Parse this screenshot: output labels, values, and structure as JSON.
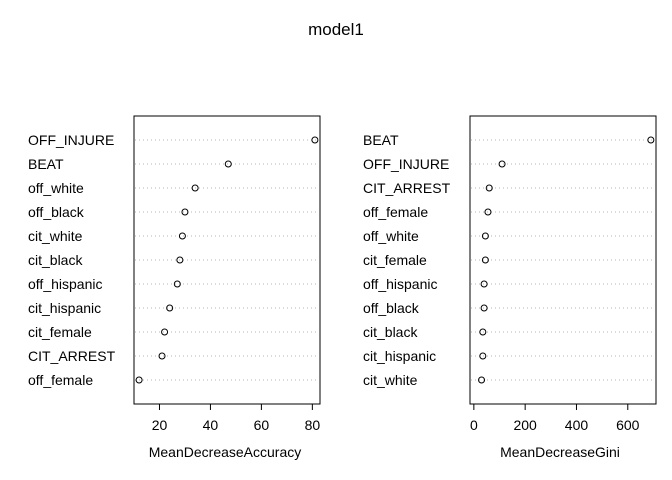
{
  "chart_data": {
    "title": "model1",
    "type": "scatter",
    "panels": [
      {
        "xlabel": "MeanDecreaseAccuracy",
        "xlim": [
          10,
          83
        ],
        "ticks": [
          20,
          40,
          60,
          80
        ],
        "grid": "dotted",
        "categories": [
          "OFF_INJURE",
          "BEAT",
          "off_white",
          "off_black",
          "cit_white",
          "cit_black",
          "off_hispanic",
          "cit_hispanic",
          "cit_female",
          "CIT_ARREST",
          "off_female"
        ],
        "values": [
          81,
          47,
          34,
          30,
          29,
          28,
          27,
          24,
          22,
          21,
          12
        ]
      },
      {
        "xlabel": "MeanDecreaseGini",
        "xlim": [
          -15,
          710
        ],
        "ticks": [
          0,
          200,
          400,
          600
        ],
        "grid": "dotted",
        "categories": [
          "BEAT",
          "OFF_INJURE",
          "CIT_ARREST",
          "off_female",
          "off_white",
          "cit_female",
          "off_hispanic",
          "off_black",
          "cit_black",
          "cit_hispanic",
          "cit_white"
        ],
        "values": [
          690,
          110,
          60,
          55,
          45,
          45,
          40,
          40,
          35,
          35,
          30
        ]
      }
    ]
  }
}
